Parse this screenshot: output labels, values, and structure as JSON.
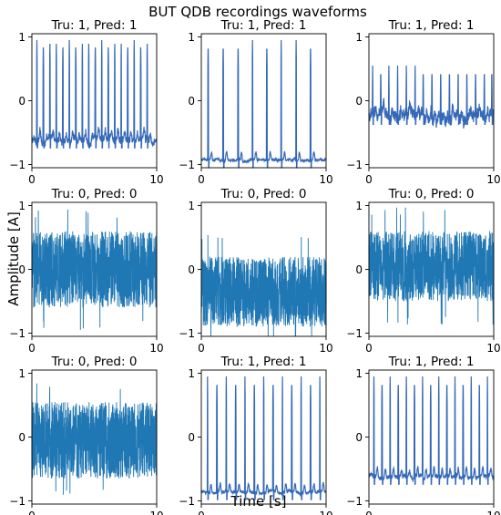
{
  "figure": {
    "title": "BUT QDB recordings waveforms",
    "xlabel": "Time [s]",
    "ylabel": "Amplitude [A]"
  },
  "colors": {
    "line": "#3569b8",
    "noise": "#1f77b4"
  },
  "chart_data": [
    {
      "type": "line",
      "title": "Tru: 1, Pred: 1",
      "kind": "ecg",
      "beats": [
        0.4,
        0.92,
        1.44,
        1.96,
        2.48,
        3.0,
        3.52,
        4.04,
        4.56,
        5.08,
        5.6,
        6.12,
        6.64,
        7.16,
        7.68,
        8.2,
        8.72,
        9.24
      ],
      "peak": 0.95,
      "baseline": -0.62,
      "noise_amp": 0.09,
      "xlim": [
        0,
        10
      ],
      "ylim": [
        -1.05,
        1.05
      ],
      "xticks": [
        0,
        10
      ],
      "yticks": [
        -1,
        0,
        1
      ],
      "tick_labels": {
        "x": [
          "0",
          "10"
        ],
        "y": [
          "−1",
          "0",
          "1"
        ]
      }
    },
    {
      "type": "line",
      "title": "Tru: 1, Pred: 1",
      "kind": "ecg",
      "beats": [
        0.55,
        1.75,
        2.95,
        4.1,
        5.25,
        6.4,
        7.6,
        8.75
      ],
      "peak": 0.95,
      "baseline": -0.93,
      "noise_amp": 0.03,
      "xlim": [
        0,
        10
      ],
      "ylim": [
        -1.05,
        1.05
      ],
      "xticks": [
        0,
        10
      ],
      "yticks": [
        -1,
        0,
        1
      ],
      "tick_labels": {
        "x": [
          "0",
          "10"
        ],
        "y": [
          "−1",
          "0",
          "1"
        ]
      }
    },
    {
      "type": "line",
      "title": "Tru: 1, Pred: 1",
      "kind": "ecg",
      "beats": [
        0.3,
        0.95,
        1.6,
        2.3,
        3.0,
        3.7,
        4.35,
        5.05,
        5.75,
        6.45,
        7.15,
        7.85,
        8.55,
        9.25,
        9.85
      ],
      "peak": 0.55,
      "baseline": -0.25,
      "noise_amp": 0.15,
      "xlim": [
        0,
        10
      ],
      "ylim": [
        -1.05,
        1.05
      ],
      "xticks": [
        0,
        10
      ],
      "yticks": [
        -1,
        0,
        1
      ],
      "tick_labels": {
        "x": [
          "0",
          "10"
        ],
        "y": [
          "−1",
          "0",
          "1"
        ]
      }
    },
    {
      "type": "line",
      "title": "Tru: 0, Pred: 0",
      "kind": "noise",
      "center": 0.0,
      "half_width": 0.6,
      "spikes": 0.95,
      "xlim": [
        0,
        10
      ],
      "ylim": [
        -1.05,
        1.05
      ],
      "xticks": [
        0,
        10
      ],
      "yticks": [
        -1,
        0,
        1
      ],
      "tick_labels": {
        "x": [
          "0",
          "10"
        ],
        "y": [
          "−1",
          "0",
          "1"
        ]
      }
    },
    {
      "type": "line",
      "title": "Tru: 0, Pred: 0",
      "kind": "noise",
      "center": -0.35,
      "half_width": 0.55,
      "spikes": 0.9,
      "xlim": [
        0,
        10
      ],
      "ylim": [
        -1.05,
        1.05
      ],
      "xticks": [
        0,
        10
      ],
      "yticks": [
        -1,
        0,
        1
      ],
      "tick_labels": {
        "x": [
          "0",
          "10"
        ],
        "y": [
          "−1",
          "0",
          "1"
        ]
      }
    },
    {
      "type": "line",
      "title": "Tru: 0, Pred: 0",
      "kind": "noise",
      "center": 0.05,
      "half_width": 0.55,
      "spikes": 0.92,
      "xlim": [
        0,
        10
      ],
      "ylim": [
        -1.05,
        1.05
      ],
      "xticks": [
        0,
        10
      ],
      "yticks": [
        -1,
        0,
        1
      ],
      "tick_labels": {
        "x": [
          "0",
          "10"
        ],
        "y": [
          "−1",
          "0",
          "1"
        ]
      }
    },
    {
      "type": "line",
      "title": "Tru: 0, Pred: 0",
      "kind": "noise",
      "center": -0.05,
      "half_width": 0.6,
      "spikes": 0.9,
      "xlim": [
        0,
        10
      ],
      "ylim": [
        -1.05,
        1.05
      ],
      "xticks": [
        0,
        10
      ],
      "yticks": [
        -1,
        0,
        1
      ],
      "tick_labels": {
        "x": [
          "0",
          "10"
        ],
        "y": [
          "−1",
          "0",
          "1"
        ]
      }
    },
    {
      "type": "line",
      "title": "Tru: 1, Pred: 1",
      "kind": "ecg",
      "beats": [
        0.5,
        1.25,
        2.0,
        2.75,
        3.5,
        4.25,
        5.0,
        5.75,
        6.5,
        7.25,
        8.0,
        8.75,
        9.5
      ],
      "peak": 0.95,
      "baseline": -0.86,
      "noise_amp": 0.04,
      "xlim": [
        0,
        10
      ],
      "ylim": [
        -1.05,
        1.05
      ],
      "xticks": [
        0,
        10
      ],
      "yticks": [
        -1,
        0,
        1
      ],
      "tick_labels": {
        "x": [
          "0",
          "10"
        ],
        "y": [
          "−1",
          "0",
          "1"
        ]
      }
    },
    {
      "type": "line",
      "title": "Tru: 1, Pred: 1",
      "kind": "ecg",
      "beats": [
        0.4,
        1.05,
        1.7,
        2.35,
        3.0,
        3.65,
        4.3,
        4.95,
        5.6,
        6.25,
        6.9,
        7.55,
        8.2,
        8.85,
        9.5
      ],
      "peak": 0.95,
      "baseline": -0.62,
      "noise_amp": 0.05,
      "xlim": [
        0,
        10
      ],
      "ylim": [
        -1.05,
        1.05
      ],
      "xticks": [
        0,
        10
      ],
      "yticks": [
        -1,
        0,
        1
      ],
      "tick_labels": {
        "x": [
          "0",
          "10"
        ],
        "y": [
          "−1",
          "0",
          "1"
        ]
      }
    }
  ]
}
